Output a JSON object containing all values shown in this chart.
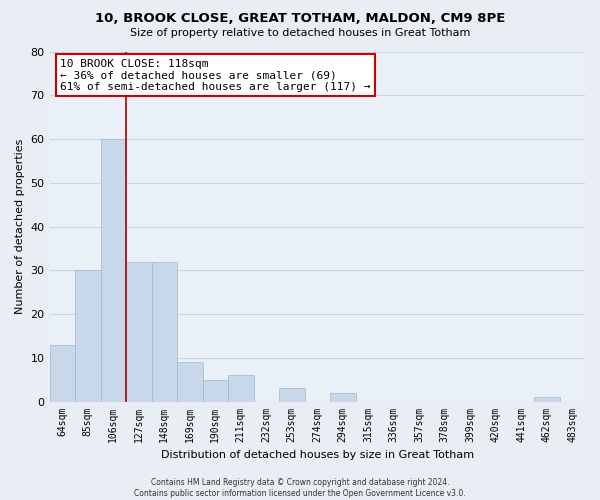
{
  "title": "10, BROOK CLOSE, GREAT TOTHAM, MALDON, CM9 8PE",
  "subtitle": "Size of property relative to detached houses in Great Totham",
  "xlabel": "Distribution of detached houses by size in Great Totham",
  "ylabel": "Number of detached properties",
  "categories": [
    "64sqm",
    "85sqm",
    "106sqm",
    "127sqm",
    "148sqm",
    "169sqm",
    "190sqm",
    "211sqm",
    "232sqm",
    "253sqm",
    "274sqm",
    "294sqm",
    "315sqm",
    "336sqm",
    "357sqm",
    "378sqm",
    "399sqm",
    "420sqm",
    "441sqm",
    "462sqm",
    "483sqm"
  ],
  "values": [
    13,
    30,
    60,
    32,
    32,
    9,
    5,
    6,
    0,
    3,
    0,
    2,
    0,
    0,
    0,
    0,
    0,
    0,
    0,
    1,
    0
  ],
  "bar_color": "#c8d8ea",
  "bar_edge_color": "#a0b8d0",
  "marker_color": "#aa0000",
  "ylim": [
    0,
    80
  ],
  "yticks": [
    0,
    10,
    20,
    30,
    40,
    50,
    60,
    70,
    80
  ],
  "annotation_line1": "10 BROOK CLOSE: 118sqm",
  "annotation_line2": "← 36% of detached houses are smaller (69)",
  "annotation_line3": "61% of semi-detached houses are larger (117) →",
  "footer_line1": "Contains HM Land Registry data © Crown copyright and database right 2024.",
  "footer_line2": "Contains public sector information licensed under the Open Government Licence v3.0.",
  "bg_color": "#e8eef4",
  "plot_bg_color": "#eaf0f8",
  "grid_color": "#c8d4e0"
}
